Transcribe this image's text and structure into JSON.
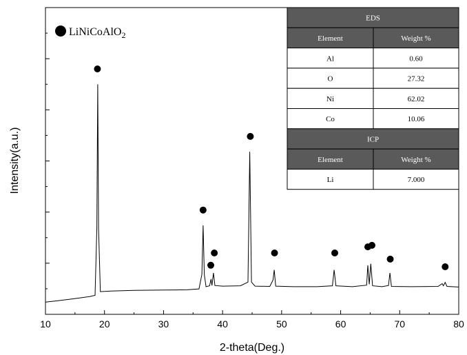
{
  "chart_data": {
    "type": "line",
    "xlabel": "2-theta(Deg.)",
    "ylabel": "Intensity(a.u.)",
    "xlim": [
      10,
      80
    ],
    "ylim": [
      0,
      100
    ],
    "xticks": [
      "10",
      "20",
      "30",
      "40",
      "50",
      "60",
      "70",
      "80"
    ],
    "grid": false,
    "legend": {
      "position": "top-left",
      "marker": "filled-circle",
      "label_main": "LiNiCoAlO",
      "label_sub": "2"
    },
    "series": [
      {
        "name": "LiNiCoAlO2",
        "points": [
          [
            10,
            4.0
          ],
          [
            12,
            4.4
          ],
          [
            14,
            4.9
          ],
          [
            16,
            5.4
          ],
          [
            17.5,
            5.8
          ],
          [
            18.4,
            6.2
          ],
          [
            18.7,
            28
          ],
          [
            18.85,
            75
          ],
          [
            19.0,
            28
          ],
          [
            19.3,
            7.4
          ],
          [
            21,
            7.6
          ],
          [
            25,
            7.8
          ],
          [
            30,
            7.9
          ],
          [
            34,
            8.0
          ],
          [
            36,
            8.3
          ],
          [
            36.5,
            13
          ],
          [
            36.7,
            29
          ],
          [
            36.9,
            13
          ],
          [
            37.2,
            9.0
          ],
          [
            37.8,
            9.3
          ],
          [
            38.05,
            11.5
          ],
          [
            38.2,
            9.4
          ],
          [
            38.45,
            13.5
          ],
          [
            38.7,
            9.4
          ],
          [
            40,
            9.2
          ],
          [
            43,
            9.3
          ],
          [
            44.3,
            10.5
          ],
          [
            44.6,
            53
          ],
          [
            44.9,
            10.5
          ],
          [
            45.5,
            9.2
          ],
          [
            48,
            9.1
          ],
          [
            48.55,
            11.2
          ],
          [
            48.75,
            14.5
          ],
          [
            49.0,
            9.2
          ],
          [
            52,
            9.0
          ],
          [
            56,
            9.0
          ],
          [
            58.6,
            9.3
          ],
          [
            58.9,
            14.5
          ],
          [
            59.2,
            9.3
          ],
          [
            62,
            9.0
          ],
          [
            64.4,
            9.5
          ],
          [
            64.6,
            16
          ],
          [
            64.85,
            9.8
          ],
          [
            65.1,
            16.5
          ],
          [
            65.4,
            9.3
          ],
          [
            67,
            9.0
          ],
          [
            68.1,
            9.4
          ],
          [
            68.35,
            13.5
          ],
          [
            68.6,
            9.1
          ],
          [
            72,
            9.0
          ],
          [
            76.5,
            9.1
          ],
          [
            77.2,
            10.0
          ],
          [
            77.4,
            9.3
          ],
          [
            77.7,
            10.4
          ],
          [
            78,
            9.1
          ],
          [
            80,
            8.9
          ]
        ]
      }
    ],
    "markers": [
      {
        "x": 18.8,
        "y": 80
      },
      {
        "x": 36.7,
        "y": 34
      },
      {
        "x": 38.0,
        "y": 16
      },
      {
        "x": 38.6,
        "y": 20
      },
      {
        "x": 44.7,
        "y": 58
      },
      {
        "x": 48.8,
        "y": 20
      },
      {
        "x": 59.0,
        "y": 20
      },
      {
        "x": 64.6,
        "y": 22
      },
      {
        "x": 65.3,
        "y": 22.5
      },
      {
        "x": 68.4,
        "y": 18
      },
      {
        "x": 77.7,
        "y": 15.5
      }
    ]
  },
  "inset_table": {
    "eds": {
      "title": "EDS",
      "col_element": "Element",
      "col_weight": "Weight %",
      "rows": [
        {
          "element": "Al",
          "weight": "0.60"
        },
        {
          "element": "O",
          "weight": "27.32"
        },
        {
          "element": "Ni",
          "weight": "62.02"
        },
        {
          "element": "Co",
          "weight": "10.06"
        }
      ]
    },
    "icp": {
      "title": "ICP",
      "col_element": "Element",
      "col_weight": "Weight %",
      "rows": [
        {
          "element": "Li",
          "weight": "7.000"
        }
      ]
    },
    "header_bg": "#5a5a5a",
    "header_fg": "#ffffff"
  }
}
